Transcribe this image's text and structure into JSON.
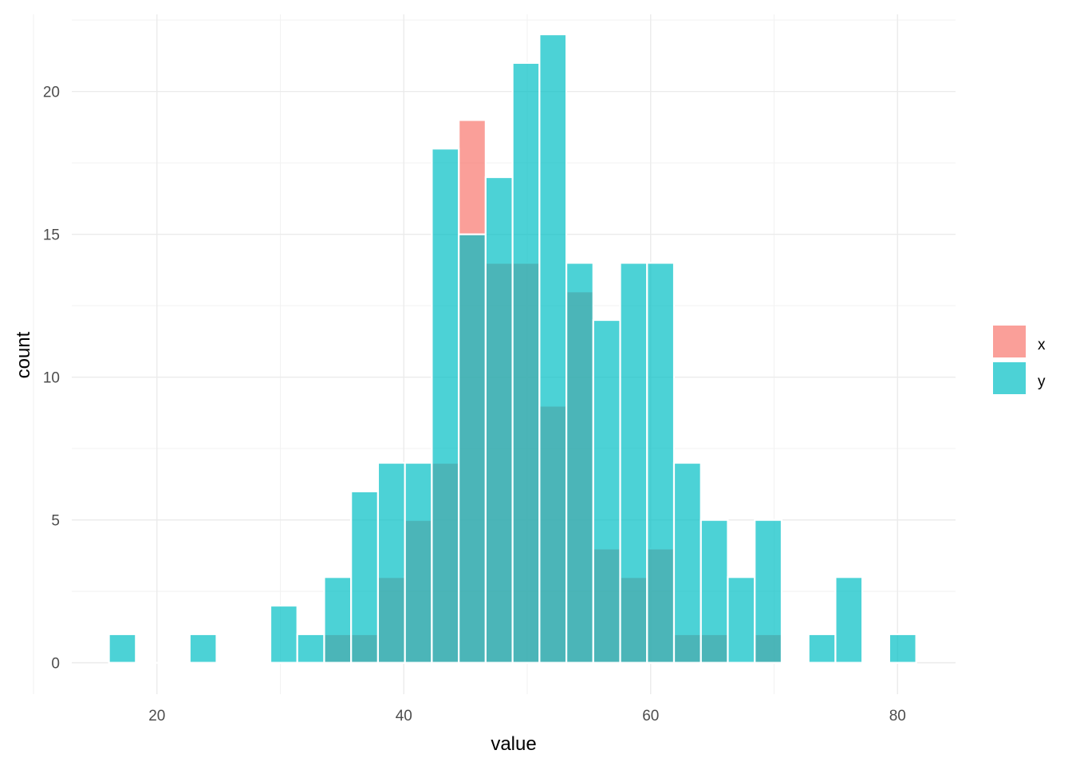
{
  "chart_data": {
    "type": "bar",
    "subtype": "overlapping-histogram",
    "xlabel": "value",
    "ylabel": "count",
    "xlim": [
      13.1,
      84.7
    ],
    "ylim": [
      -1.1,
      22.7
    ],
    "x_ticks": [
      20,
      40,
      60,
      80
    ],
    "x_tick_labels": [
      "20",
      "40",
      "60",
      "80"
    ],
    "y_ticks": [
      0,
      5,
      10,
      15,
      20
    ],
    "y_tick_labels": [
      "0",
      "5",
      "10",
      "15",
      "20"
    ],
    "grid": true,
    "legend": {
      "position": "right"
    },
    "bin_width": 2.18,
    "bin_centers": [
      17.2,
      19.38,
      21.56,
      23.74,
      25.92,
      28.1,
      30.28,
      32.46,
      34.64,
      36.82,
      39.0,
      41.18,
      43.36,
      45.54,
      47.72,
      49.9,
      52.08,
      54.26,
      56.44,
      58.62,
      60.8,
      62.98,
      65.16,
      67.34,
      69.52,
      71.7,
      73.88,
      76.06,
      78.24,
      80.42
    ],
    "series": [
      {
        "name": "x",
        "color": "#F8766D",
        "values": [
          0,
          0,
          0,
          0,
          0,
          0,
          0,
          0,
          1,
          1,
          3,
          5,
          7,
          19,
          14,
          14,
          9,
          13,
          4,
          3,
          4,
          1,
          1,
          0,
          1,
          0,
          0,
          0,
          0,
          0
        ]
      },
      {
        "name": "y",
        "color": "#00BFC4",
        "values": [
          1,
          0,
          0,
          1,
          0,
          0,
          2,
          1,
          3,
          6,
          7,
          7,
          18,
          15,
          17,
          21,
          22,
          14,
          12,
          14,
          14,
          7,
          5,
          3,
          5,
          0,
          1,
          3,
          0,
          1
        ]
      }
    ]
  }
}
